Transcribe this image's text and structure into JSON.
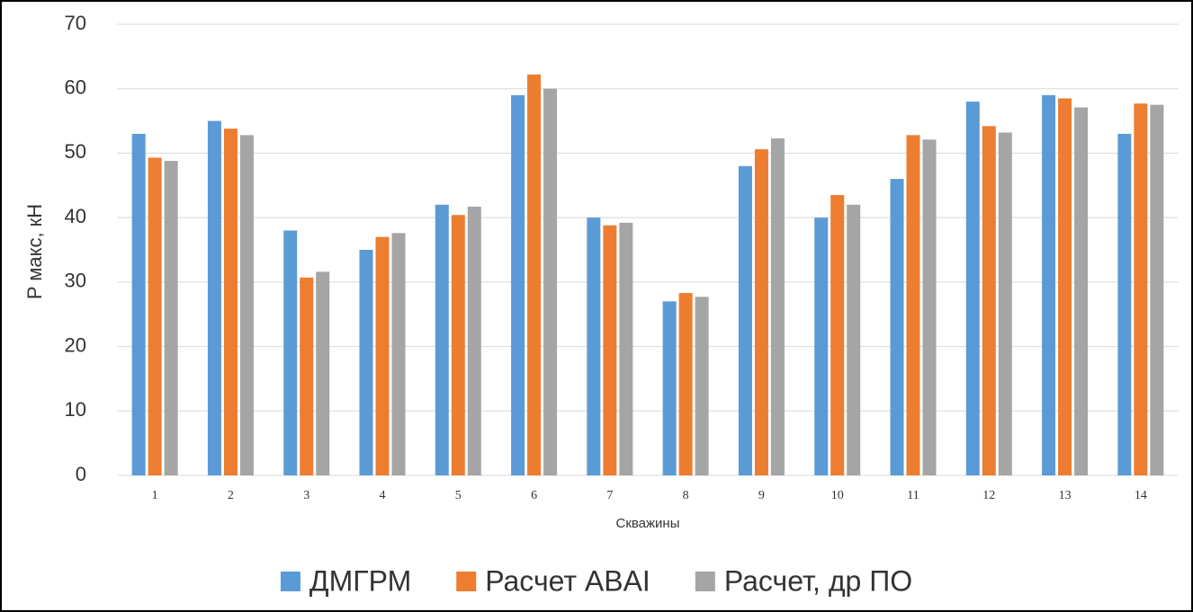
{
  "chart_data": {
    "type": "bar",
    "y_label": "P макс, кН",
    "x_label": "Скважины",
    "categories": [
      "1",
      "2",
      "3",
      "4",
      "5",
      "6",
      "7",
      "8",
      "9",
      "10",
      "11",
      "12",
      "13",
      "14"
    ],
    "series": [
      {
        "name": "ДМГРМ",
        "color": "#5b9bd5",
        "values": [
          53,
          55,
          38,
          35,
          42,
          59,
          40,
          27,
          48,
          40,
          46,
          58,
          59,
          53
        ]
      },
      {
        "name": "Расчет ABAI",
        "color": "#ed7d31",
        "values": [
          49.3,
          53.8,
          30.7,
          37,
          40.4,
          62.2,
          38.8,
          28.3,
          50.6,
          43.5,
          52.8,
          54.2,
          58.5,
          57.7
        ]
      },
      {
        "name": "Расчет, др ПО",
        "color": "#a5a5a5",
        "values": [
          48.8,
          52.8,
          31.6,
          37.6,
          41.7,
          60,
          39.2,
          27.7,
          52.3,
          42,
          52.1,
          53.2,
          57.1,
          57.5
        ]
      }
    ],
    "ylim": [
      0,
      70
    ],
    "yticks": [
      0,
      10,
      20,
      30,
      40,
      50,
      60,
      70
    ],
    "grid": true,
    "legend": "bottom"
  }
}
